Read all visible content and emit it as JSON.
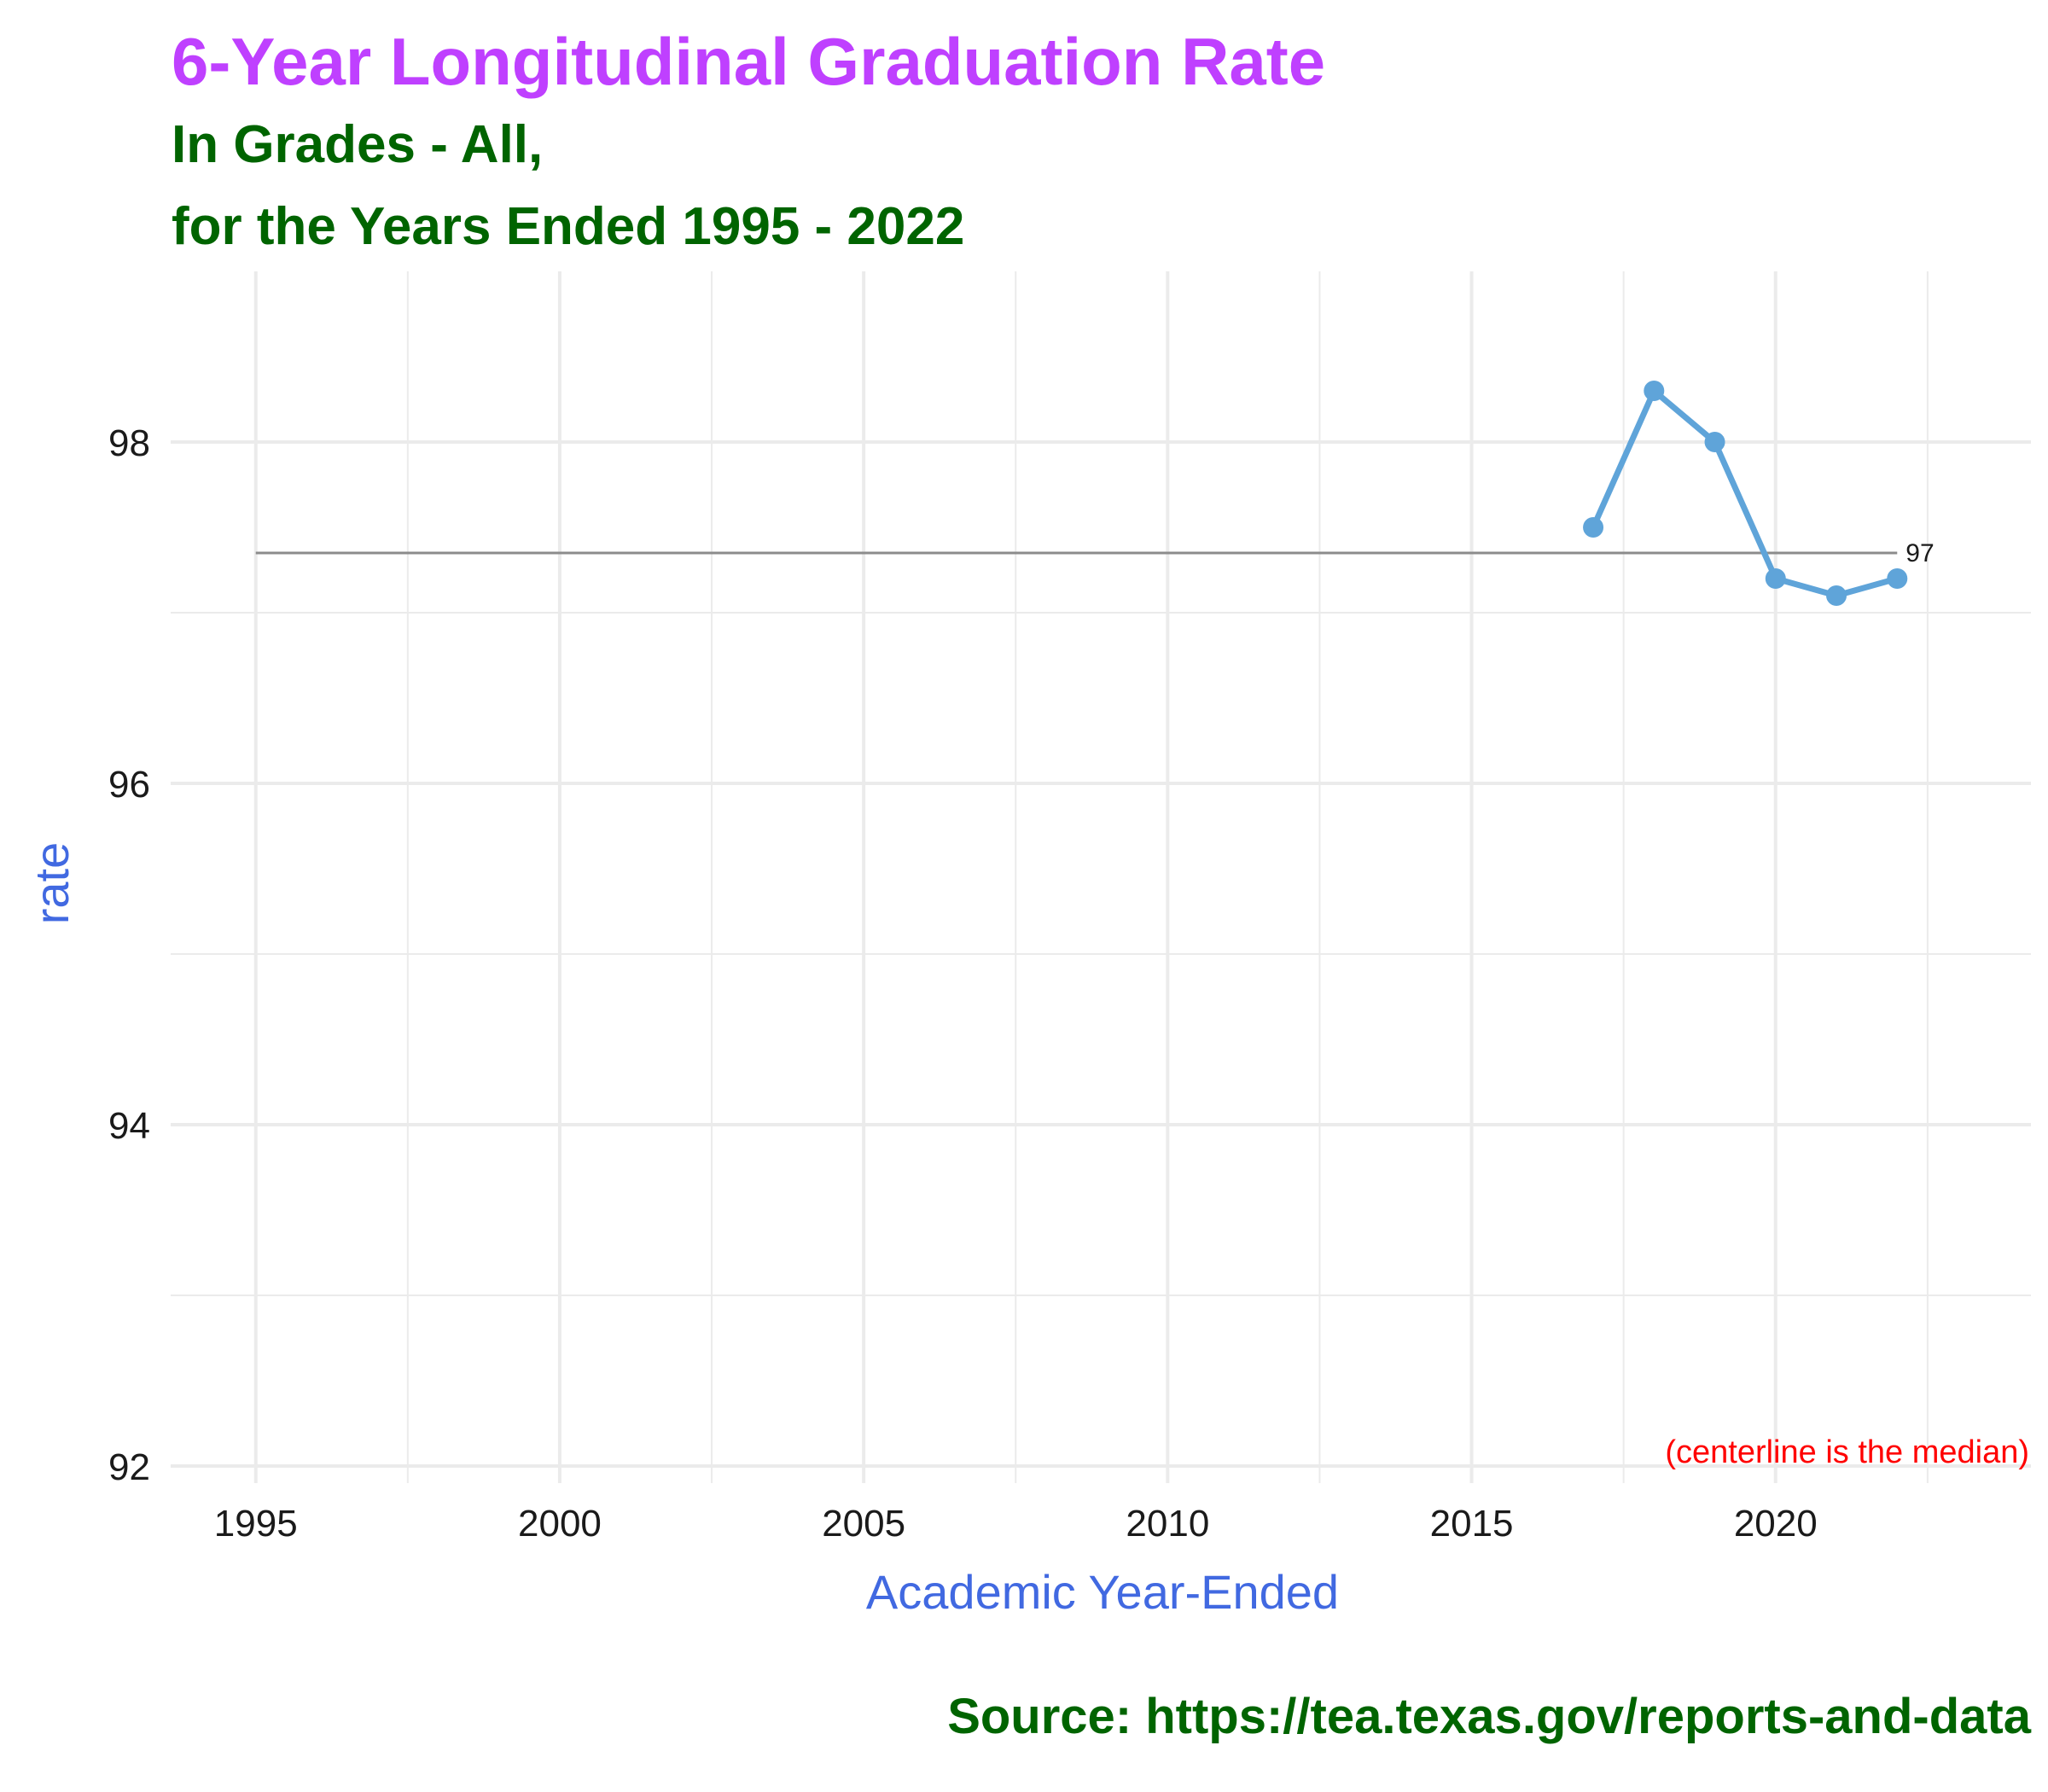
{
  "header": {
    "title": "6-Year Longitudinal Graduation Rate",
    "subtitle_line1": "In Grades - All,",
    "subtitle_line2": "for the Years Ended 1995 - 2022"
  },
  "caption": "Source:  https://tea.texas.gov/reports-and-data",
  "colors": {
    "title": "#bf40ff",
    "subtitle": "#006400",
    "axis_title": "#4169e1",
    "series": "#5fa4d9",
    "median_line": "#8c8c8c",
    "annotation": "#ff0000",
    "grid": "#ebebeb"
  },
  "chart_data": {
    "type": "line",
    "xlabel": "Academic Year-Ended",
    "ylabel": "rate",
    "xlim": [
      1993.6,
      2024.2
    ],
    "ylim": [
      91.9,
      99.0
    ],
    "x_ticks": [
      1995,
      2000,
      2005,
      2010,
      2015,
      2020
    ],
    "x_tick_labels": [
      "1995",
      "2000",
      "2005",
      "2010",
      "2015",
      "2020"
    ],
    "x_minor_ticks": [
      1997.5,
      2002.5,
      2007.5,
      2012.5,
      2017.5,
      2022.5
    ],
    "y_ticks": [
      92,
      94,
      96,
      98
    ],
    "y_tick_labels": [
      "92",
      "94",
      "96",
      "98"
    ],
    "y_minor_ticks": [
      93,
      95,
      97
    ],
    "grid": true,
    "series": [
      {
        "x": [
          2017,
          2018,
          2019,
          2020,
          2021,
          2022
        ],
        "y": [
          97.5,
          98.3,
          98.0,
          97.2,
          97.1,
          97.2
        ]
      }
    ],
    "median": {
      "value": 97.35,
      "x_start": 1995,
      "x_end": 2022,
      "label": "97"
    },
    "annotation": "(centerline is the median)"
  }
}
